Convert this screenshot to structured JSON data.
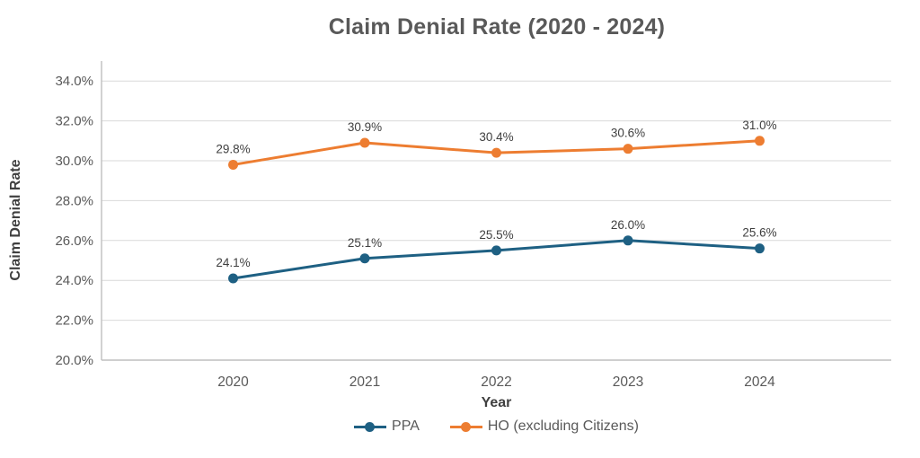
{
  "title": "Claim Denial Rate (2020 - 2024)",
  "chart_data": {
    "type": "line",
    "title": "Claim Denial Rate (2020 - 2024)",
    "xlabel": "Year",
    "ylabel": "Claim Denial Rate",
    "categories": [
      "2020",
      "2021",
      "2022",
      "2023",
      "2024"
    ],
    "series": [
      {
        "name": "PPA",
        "color": "#1E6083",
        "values": [
          24.1,
          25.1,
          25.5,
          26.0,
          25.6
        ],
        "labels": [
          "24.1%",
          "25.1%",
          "25.5%",
          "26.0%",
          "25.6%"
        ]
      },
      {
        "name": "HO (excluding Citizens)",
        "color": "#ED7D31",
        "values": [
          29.8,
          30.9,
          30.4,
          30.6,
          31.0
        ],
        "labels": [
          "29.8%",
          "30.9%",
          "30.4%",
          "30.6%",
          "31.0%"
        ]
      }
    ],
    "ylim": [
      20,
      35
    ],
    "yticks": [
      20,
      22,
      24,
      26,
      28,
      30,
      32,
      34
    ],
    "ytick_labels": [
      "20.0%",
      "22.0%",
      "24.0%",
      "26.0%",
      "28.0%",
      "30.0%",
      "32.0%",
      "34.0%"
    ],
    "grid": "horizontal",
    "legend_position": "bottom",
    "colors": {
      "gridline": "#D9D9D9",
      "axis_line": "#BFBFBF",
      "tick_text": "#595959",
      "data_label_text": "#404040"
    }
  }
}
